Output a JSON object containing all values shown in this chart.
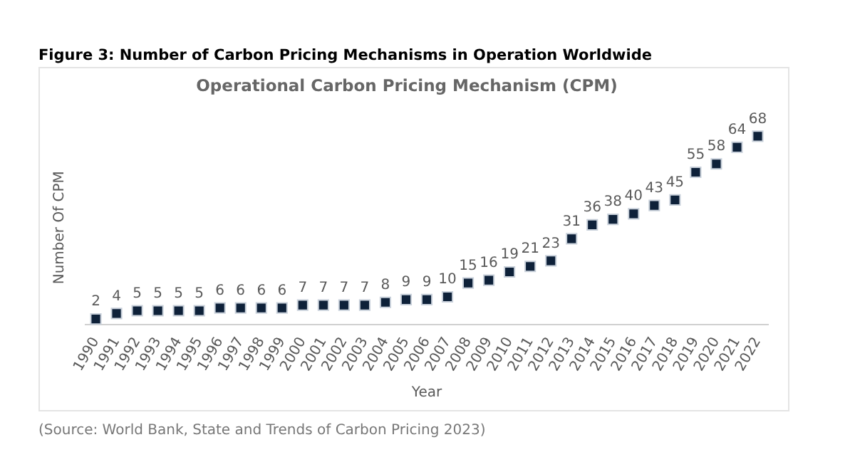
{
  "chart_data": {
    "type": "scatter",
    "title": "Figure 3: Number of Carbon Pricing Mechanisms in Operation Worldwide",
    "subtitle": "Operational Carbon Pricing Mechanism (CPM)",
    "xlabel": "Year",
    "ylabel": "Number Of CPM",
    "categories": [
      "1990",
      "1991",
      "1992",
      "1993",
      "1994",
      "1995",
      "1996",
      "1997",
      "1998",
      "1999",
      "2000",
      "2001",
      "2002",
      "2003",
      "2004",
      "2005",
      "2006",
      "2007",
      "2008",
      "2009",
      "2010",
      "2011",
      "2012",
      "2013",
      "2014",
      "2015",
      "2016",
      "2017",
      "2018",
      "2019",
      "2020",
      "2021",
      "2022"
    ],
    "values": [
      2,
      4,
      5,
      5,
      5,
      5,
      6,
      6,
      6,
      6,
      7,
      7,
      7,
      7,
      8,
      9,
      9,
      10,
      15,
      16,
      19,
      21,
      23,
      31,
      36,
      38,
      40,
      43,
      45,
      55,
      58,
      64,
      68
    ],
    "data_labels": true,
    "marker": "square",
    "color": "#0e2139",
    "grid": false,
    "legend": false,
    "annotations": [
      "(Source: World Bank, State and Trends of Carbon Pricing 2023)"
    ]
  }
}
